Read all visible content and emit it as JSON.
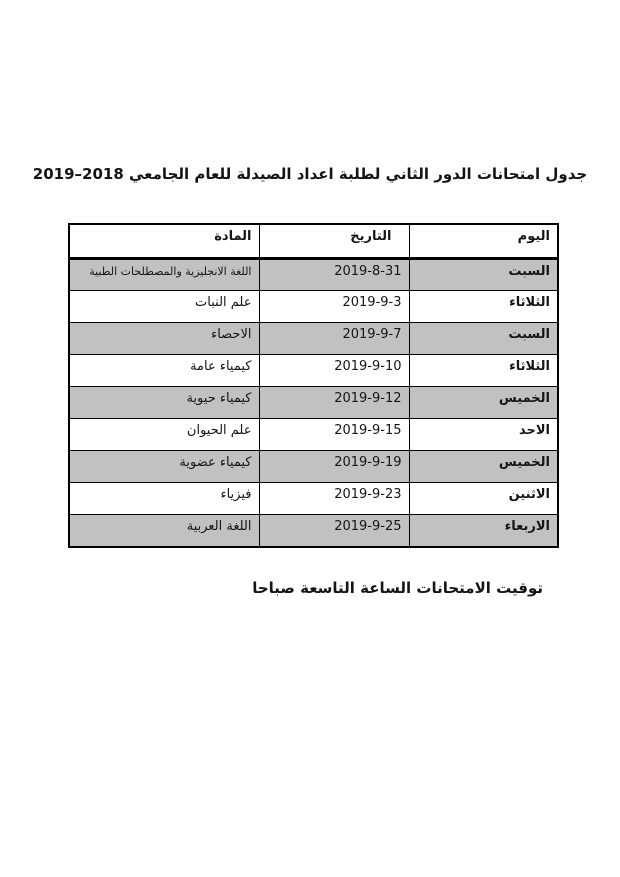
{
  "page": {
    "title": "جدول امتحانات الدور الثاني لطلبة اعداد الصيدلة للعام الجامعي 2018–2019",
    "footer_note": "توقيت الامتحانات الساعة التاسعة صباحا"
  },
  "colors": {
    "background": "#ffffff",
    "text": "#151515",
    "table_border": "#000000",
    "shaded_row": "#c1c1c1"
  },
  "schedule_table": {
    "headers": {
      "day": "اليوم",
      "date": "التاريخ",
      "subject": "المادة"
    },
    "rows": [
      {
        "day": "السبت",
        "date": "2019-8-31",
        "subject": "اللغة الانجليزية والمصطلحات الطبية"
      },
      {
        "day": "الثلاثاء",
        "date": "2019-9-3",
        "subject": "علم النبات"
      },
      {
        "day": "السبت",
        "date": "2019-9-7",
        "subject": "الاحصاء"
      },
      {
        "day": "الثلاثاء",
        "date": "2019-9-10",
        "subject": "كيمياء عامة"
      },
      {
        "day": "الخميس",
        "date": "2019-9-12",
        "subject": "كيمياء حيوية"
      },
      {
        "day": "الاحد",
        "date": "2019-9-15",
        "subject": "علم الحيوان"
      },
      {
        "day": "الخميس",
        "date": "2019-9-19",
        "subject": "كيمياء عضوية"
      },
      {
        "day": "الاثنين",
        "date": "2019-9-23",
        "subject": "فيزياء"
      },
      {
        "day": "الاربعاء",
        "date": "2019-9-25",
        "subject": "اللغة العربية"
      }
    ]
  }
}
